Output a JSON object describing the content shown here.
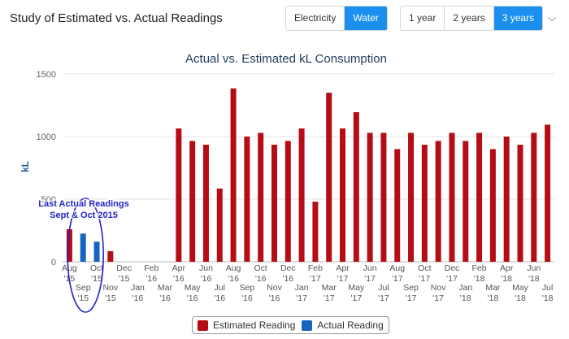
{
  "page": {
    "title": "Study of Estimated vs. Actual Readings",
    "utility_buttons": [
      "Electricity",
      "Water"
    ],
    "utility_selected": "Water",
    "period_buttons": [
      "1 year",
      "2 years",
      "3 years"
    ],
    "period_selected": "3 years"
  },
  "icons": {
    "dropdown": "chevron-down-icon"
  },
  "colors": {
    "estimated": "#b50d16",
    "actual": "#1565c0",
    "annotation": "#2323c8",
    "accent": "#1a8ff0"
  },
  "chart_data": {
    "type": "bar",
    "title": "Actual vs. Estimated kL Consumption",
    "ylabel": "kL",
    "xlabel": "",
    "ylim": [
      0,
      1500
    ],
    "yticks": [
      0,
      500,
      1000,
      1500
    ],
    "grid": true,
    "legend_position": "bottom",
    "categories": [
      [
        "Aug",
        "'15"
      ],
      [
        "Sep",
        "'15"
      ],
      [
        "Oct",
        "'15"
      ],
      [
        "Nov",
        "'15"
      ],
      [
        "Dec",
        "'15"
      ],
      [
        "Jan",
        "'16"
      ],
      [
        "Feb",
        "'16"
      ],
      [
        "Mar",
        "'16"
      ],
      [
        "Apr",
        "'16"
      ],
      [
        "May",
        "'16"
      ],
      [
        "Jun",
        "'16"
      ],
      [
        "Jul",
        "'16"
      ],
      [
        "Aug",
        "'16"
      ],
      [
        "Sep",
        "'16"
      ],
      [
        "Oct",
        "'16"
      ],
      [
        "Nov",
        "'16"
      ],
      [
        "Dec",
        "'16"
      ],
      [
        "Jan",
        "'17"
      ],
      [
        "Feb",
        "'17"
      ],
      [
        "Mar",
        "'17"
      ],
      [
        "Apr",
        "'17"
      ],
      [
        "May",
        "'17"
      ],
      [
        "Jun",
        "'17"
      ],
      [
        "Jul",
        "'17"
      ],
      [
        "Aug",
        "'17"
      ],
      [
        "Sep",
        "'17"
      ],
      [
        "Oct",
        "'17"
      ],
      [
        "Nov",
        "'17"
      ],
      [
        "Dec",
        "'17"
      ],
      [
        "Jan",
        "'18"
      ],
      [
        "Feb",
        "'18"
      ],
      [
        "Mar",
        "'18"
      ],
      [
        "Apr",
        "'18"
      ],
      [
        "May",
        "'18"
      ],
      [
        "Jun",
        "'18"
      ],
      [
        "Jul",
        "'18"
      ]
    ],
    "series": [
      {
        "name": "Estimated Reading",
        "values": [
          260,
          null,
          null,
          85,
          null,
          null,
          null,
          null,
          1065,
          965,
          935,
          585,
          1385,
          1000,
          1030,
          935,
          965,
          1065,
          480,
          1350,
          1065,
          1195,
          1030,
          1030,
          900,
          1030,
          935,
          965,
          1030,
          965,
          1030,
          900,
          1000,
          935,
          1030,
          1095
        ]
      },
      {
        "name": "Actual Reading",
        "values": [
          null,
          225,
          160,
          null,
          null,
          null,
          null,
          null,
          null,
          null,
          null,
          null,
          null,
          null,
          null,
          null,
          null,
          null,
          null,
          null,
          null,
          null,
          null,
          null,
          null,
          null,
          null,
          null,
          null,
          null,
          null,
          null,
          null,
          null,
          null,
          null
        ]
      }
    ],
    "annotation": {
      "lines": [
        "Last Actual Readings",
        "Sept & Oct 2015"
      ]
    }
  }
}
